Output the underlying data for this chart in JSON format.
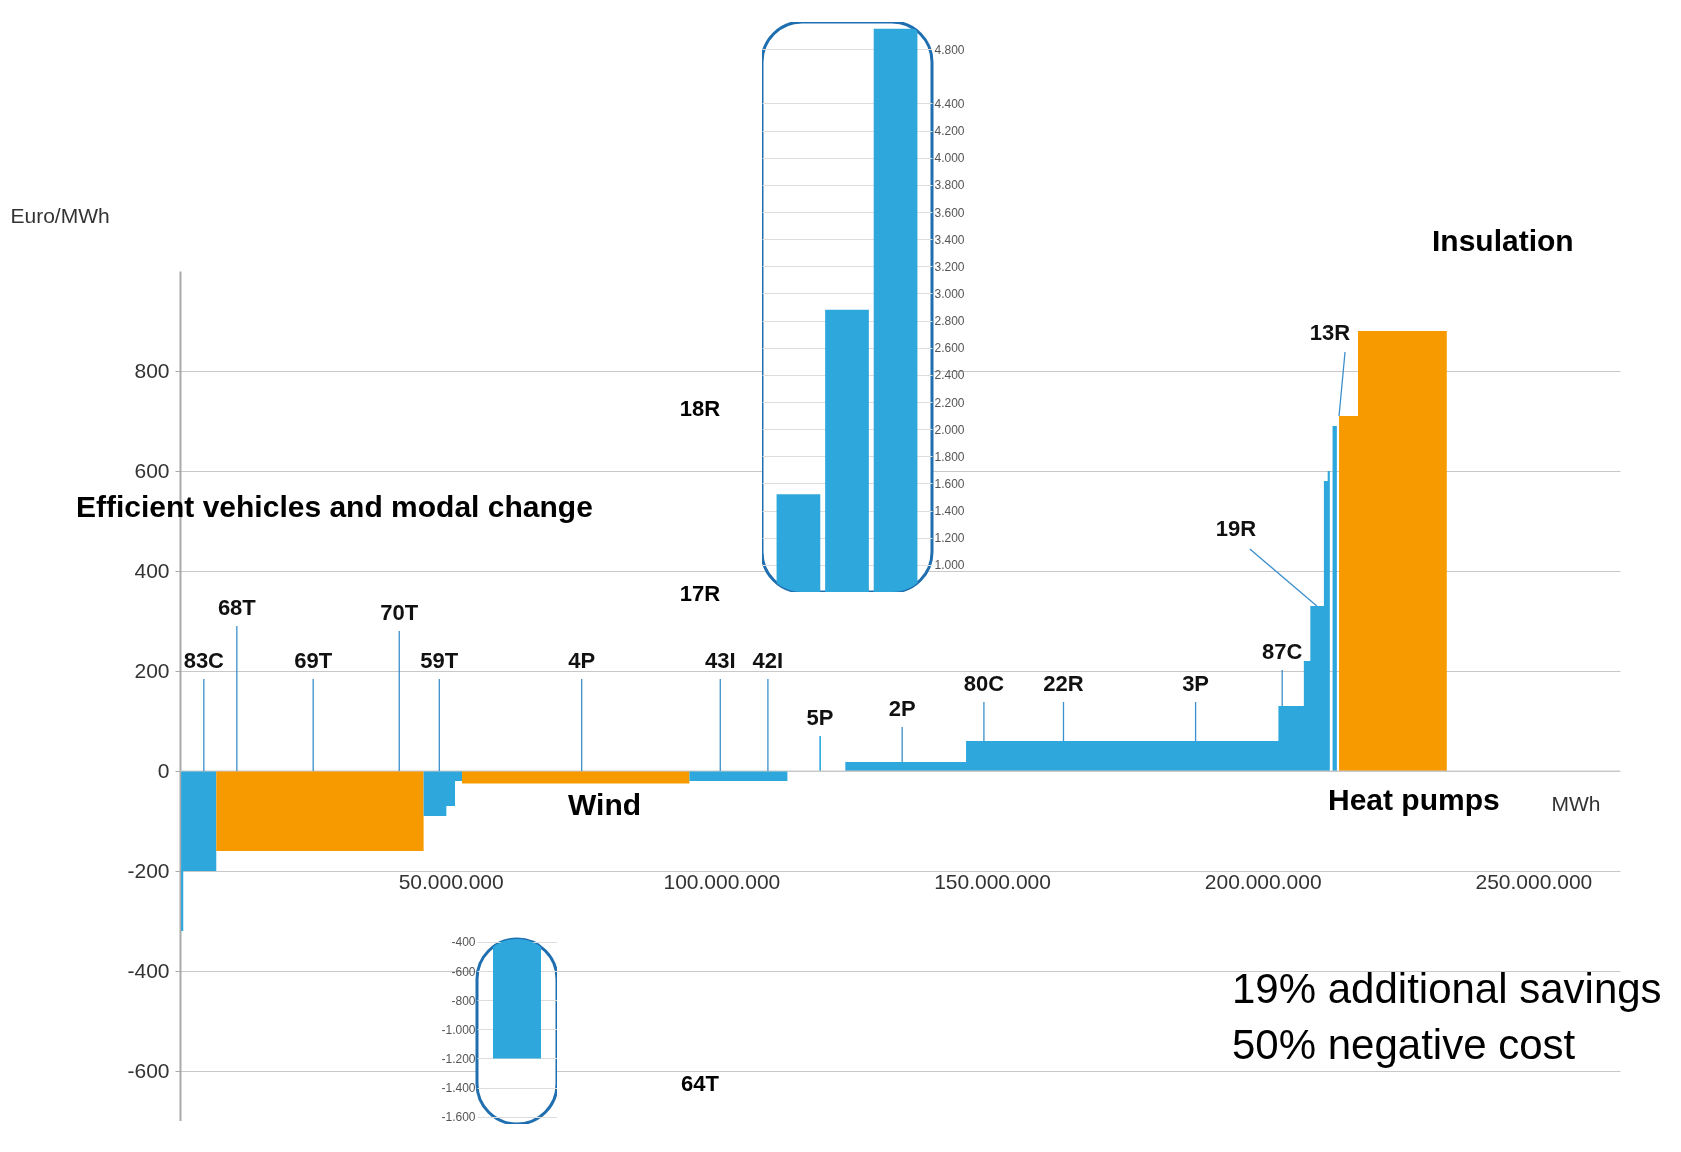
{
  "chart_data": [
    {
      "type": "area",
      "xlabel": "MWh",
      "ylabel": "Euro/MWh",
      "grid": "y",
      "xlim": [
        0,
        266000000
      ],
      "xticks": [
        {
          "value": 50000000,
          "label": "50.000.000"
        },
        {
          "value": 100000000,
          "label": "100.000.000"
        },
        {
          "value": 150000000,
          "label": "150.000.000"
        },
        {
          "value": 200000000,
          "label": "200.000.000"
        },
        {
          "value": 250000000,
          "label": "250.000.000"
        }
      ],
      "ylim": [
        -700,
        1000
      ],
      "yticks": [
        -600,
        -400,
        -200,
        0,
        200,
        400,
        600,
        800
      ],
      "series": [
        {
          "color": "#2ea8dc",
          "x": [
            200000,
            600000,
            6700000
          ],
          "values": [
            -320,
            -200,
            -200
          ]
        },
        {
          "color": "#f79a00",
          "x": [
            6700000,
            45000000
          ],
          "values": [
            -160,
            -160
          ]
        },
        {
          "color": "#2ea8dc",
          "x": [
            45000000,
            49200000,
            50800000,
            52100000
          ],
          "values": [
            -90,
            -70,
            -20,
            -20
          ]
        },
        {
          "color": "#f79a00",
          "x": [
            52100000,
            94100000
          ],
          "values": [
            -25,
            -25
          ]
        },
        {
          "color": "#2ea8dc",
          "x": [
            94100000,
            112200000
          ],
          "values": [
            -20,
            -20
          ]
        },
        {
          "color": "#2ea8dc",
          "x": [
            118100000,
            118400000
          ],
          "values": [
            70,
            70
          ]
        },
        {
          "color": "#2ea8dc",
          "x": [
            122900000,
            145200000,
            202900000,
            207600000,
            208800000,
            211300000,
            212000000,
            212400000
          ],
          "values": [
            18,
            60,
            130,
            220,
            330,
            580,
            600,
            600
          ]
        },
        {
          "color": "#2ea8dc",
          "x": [
            212900000,
            213700000
          ],
          "values": [
            690,
            690
          ]
        },
        {
          "color": "#f79a00",
          "x": [
            214100000,
            217600000,
            234000000
          ],
          "values": [
            710,
            880,
            880
          ]
        }
      ],
      "annotations": [
        {
          "text": "83C",
          "x": 4400000,
          "y": 0
        },
        {
          "text": "68T",
          "x": 10500000,
          "y": 0
        },
        {
          "text": "69T",
          "x": 24600000,
          "y": 0
        },
        {
          "text": "70T",
          "x": 40500000,
          "y": 0
        },
        {
          "text": "59T",
          "x": 47900000,
          "y": 0
        },
        {
          "text": "4P",
          "x": 74200000,
          "y": 0
        },
        {
          "text": "43I",
          "x": 99800000,
          "y": 0
        },
        {
          "text": "42I",
          "x": 108600000,
          "y": 0
        },
        {
          "text": "5P",
          "x": 118200000,
          "y": 70
        },
        {
          "text": "2P",
          "x": 133400000,
          "y": 18
        },
        {
          "text": "80C",
          "x": 148500000,
          "y": 60
        },
        {
          "text": "22R",
          "x": 163200000,
          "y": 60
        },
        {
          "text": "3P",
          "x": 187600000,
          "y": 60
        },
        {
          "text": "87C",
          "x": 203600000,
          "y": 130
        },
        {
          "text": "19R",
          "x": 210000000,
          "y": 330
        },
        {
          "text": "13R",
          "x": 214100000,
          "y": 710
        },
        "Efficient vehicles and modal change",
        "Wind",
        "Heat pumps",
        "Insulation",
        "19% additional savings",
        "50% negative cost"
      ]
    },
    {
      "type": "bar",
      "categories": [
        null,
        null,
        null
      ],
      "values": [
        1520,
        2880,
        4950
      ],
      "color": "#2ea8dc",
      "grid": "y",
      "tick_labels": "y",
      "ylim": [
        800,
        5000
      ],
      "yticks": [
        {
          "value": 1000,
          "label": "1.000"
        },
        {
          "value": 1200,
          "label": "1.200"
        },
        {
          "value": 1400,
          "label": "1.400"
        },
        {
          "value": 1600,
          "label": "1.600"
        },
        {
          "value": 1800,
          "label": "1.800"
        },
        {
          "value": 2000,
          "label": "2.000"
        },
        {
          "value": 2200,
          "label": "2.200"
        },
        {
          "value": 2400,
          "label": "2.400"
        },
        {
          "value": 2600,
          "label": "2.600"
        },
        {
          "value": 2800,
          "label": "2.800"
        },
        {
          "value": 3000,
          "label": "3.000"
        },
        {
          "value": 3200,
          "label": "3.200"
        },
        {
          "value": 3400,
          "label": "3.400"
        },
        {
          "value": 3600,
          "label": "3.600"
        },
        {
          "value": 3800,
          "label": "3.800"
        },
        {
          "value": 4000,
          "label": "4.000"
        },
        {
          "value": 4200,
          "label": "4.200"
        },
        {
          "value": 4400,
          "label": "4.400"
        },
        {
          "value": 4800,
          "label": "4.800"
        }
      ],
      "annotations": [
        "17R",
        "18R"
      ]
    },
    {
      "type": "bar",
      "categories": [
        null
      ],
      "values": [
        -1200
      ],
      "color": "#2ea8dc",
      "grid": "y",
      "tick_labels": "y",
      "ylim": [
        -1650,
        -380
      ],
      "yticks": [
        {
          "value": -400,
          "label": "-400"
        },
        {
          "value": -600,
          "label": "-600"
        },
        {
          "value": -800,
          "label": "-800"
        },
        {
          "value": -1000,
          "label": "-1.000"
        },
        {
          "value": -1200,
          "label": "-1.200"
        },
        {
          "value": -1400,
          "label": "-1.400"
        },
        {
          "value": -1600,
          "label": "-1.600"
        }
      ],
      "annotations": [
        "64T"
      ]
    }
  ]
}
